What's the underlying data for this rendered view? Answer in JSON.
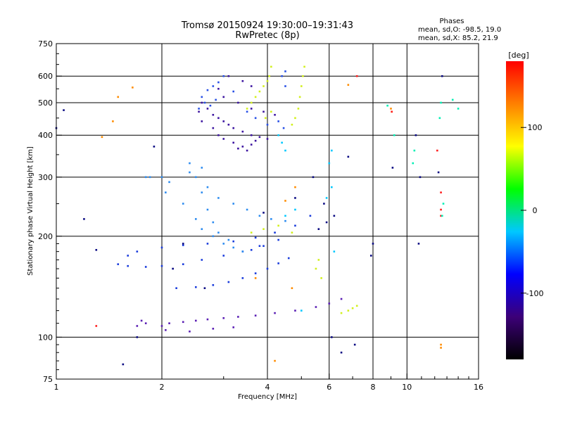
{
  "chart_data": {
    "type": "scatter",
    "title": "Tromsø 20150924 19:30:00–19:31:43",
    "subtitle": "RwPretec (8p)",
    "phases": {
      "heading": "Phases",
      "line_o": "mean, sd,O:  -98.5, 19.0",
      "line_x": "mean, sd,X:   85.2, 21.9"
    },
    "xlabel": "Frequency [MHz]",
    "ylabel": "Stationary phase Virtual Height [km]",
    "x_scale": "log",
    "y_scale": "log",
    "xlim": [
      1,
      16
    ],
    "ylim": [
      75,
      750
    ],
    "x_ticks": [
      1,
      2,
      4,
      6,
      8,
      10,
      16
    ],
    "x_tick_labels": [
      "1",
      "2",
      "4",
      "6",
      "8",
      "10",
      "16"
    ],
    "y_ticks": [
      75,
      100,
      200,
      300,
      400,
      500,
      600,
      750
    ],
    "y_tick_labels": [
      "75",
      "100",
      "200",
      "300",
      "400",
      "500",
      "600",
      "750"
    ],
    "grid": true,
    "grid_x": [
      2,
      4,
      6,
      8,
      10
    ],
    "grid_y": [
      100,
      200,
      300,
      400,
      500,
      600
    ],
    "colorbar": {
      "label": "[deg]",
      "range": [
        -180,
        180
      ],
      "ticks": [
        100,
        0,
        -100
      ],
      "tick_labels": [
        "100",
        "0",
        "-100"
      ],
      "colors": [
        "#000000",
        "#3c0078",
        "#0000ff",
        "#00c8ff",
        "#00ff00",
        "#ffff00",
        "#ff8000",
        "#ff0000"
      ]
    },
    "series": [
      {
        "color": "#5a1eb4",
        "points": [
          [
            2.0,
            108
          ],
          [
            2.1,
            110
          ],
          [
            2.3,
            111
          ],
          [
            2.5,
            112
          ],
          [
            2.7,
            113
          ],
          [
            3.0,
            114
          ],
          [
            3.3,
            115
          ],
          [
            3.7,
            116
          ],
          [
            4.2,
            118
          ],
          [
            4.8,
            120
          ],
          [
            5.5,
            123
          ],
          [
            6.0,
            126
          ],
          [
            6.5,
            130
          ],
          [
            2.05,
            105
          ],
          [
            2.4,
            104
          ],
          [
            2.8,
            106
          ],
          [
            3.2,
            107
          ],
          [
            1.7,
            108
          ],
          [
            1.75,
            112
          ],
          [
            1.8,
            110
          ]
        ]
      },
      {
        "color": "#1a3cdc",
        "points": [
          [
            2.2,
            140
          ],
          [
            2.5,
            141
          ],
          [
            2.8,
            143
          ],
          [
            3.1,
            146
          ],
          [
            3.4,
            150
          ],
          [
            3.7,
            155
          ],
          [
            4.0,
            160
          ],
          [
            4.3,
            166
          ],
          [
            4.6,
            172
          ],
          [
            1.5,
            165
          ],
          [
            1.6,
            163
          ],
          [
            1.8,
            162
          ],
          [
            2.0,
            163
          ],
          [
            2.3,
            165
          ],
          [
            2.6,
            170
          ],
          [
            3.0,
            175
          ],
          [
            3.4,
            180
          ],
          [
            3.8,
            187
          ],
          [
            1.6,
            175
          ],
          [
            1.7,
            180
          ],
          [
            2.0,
            185
          ],
          [
            2.3,
            188
          ],
          [
            2.7,
            190
          ],
          [
            3.2,
            193
          ],
          [
            3.7,
            198
          ],
          [
            4.2,
            205
          ],
          [
            4.8,
            215
          ],
          [
            5.3,
            230
          ],
          [
            3.6,
            182
          ],
          [
            3.9,
            187
          ],
          [
            4.3,
            195
          ]
        ]
      },
      {
        "color": "#2d8cf0",
        "points": [
          [
            2.4,
            330
          ],
          [
            2.5,
            300
          ],
          [
            2.6,
            270
          ],
          [
            2.7,
            240
          ],
          [
            2.8,
            220
          ],
          [
            2.9,
            205
          ],
          [
            3.0,
            190
          ],
          [
            3.2,
            185
          ],
          [
            3.4,
            180
          ],
          [
            2.3,
            250
          ],
          [
            2.5,
            225
          ],
          [
            2.6,
            210
          ],
          [
            2.8,
            200
          ],
          [
            3.1,
            195
          ],
          [
            2.0,
            300
          ],
          [
            2.1,
            290
          ],
          [
            2.05,
            270
          ],
          [
            1.8,
            300
          ],
          [
            1.85,
            300
          ],
          [
            2.6,
            320
          ],
          [
            2.4,
            310
          ],
          [
            2.7,
            280
          ],
          [
            2.9,
            260
          ],
          [
            3.2,
            250
          ],
          [
            3.5,
            240
          ],
          [
            3.8,
            230
          ],
          [
            4.1,
            225
          ],
          [
            4.5,
            222
          ]
        ]
      },
      {
        "color": "#3c14a0",
        "points": [
          [
            2.7,
            480
          ],
          [
            2.8,
            460
          ],
          [
            2.9,
            450
          ],
          [
            3.0,
            440
          ],
          [
            3.1,
            430
          ],
          [
            3.2,
            420
          ],
          [
            3.4,
            410
          ],
          [
            3.6,
            400
          ],
          [
            3.8,
            395
          ],
          [
            4.0,
            390
          ],
          [
            2.8,
            420
          ],
          [
            2.9,
            400
          ],
          [
            3.0,
            390
          ],
          [
            3.2,
            380
          ],
          [
            3.4,
            370
          ],
          [
            3.6,
            375
          ],
          [
            3.7,
            385
          ],
          [
            3.3,
            365
          ],
          [
            3.5,
            360
          ],
          [
            2.6,
            440
          ],
          [
            2.55,
            470
          ],
          [
            2.6,
            500
          ],
          [
            3.0,
            520
          ],
          [
            3.3,
            500
          ],
          [
            3.6,
            480
          ],
          [
            3.9,
            470
          ],
          [
            4.2,
            460
          ],
          [
            2.9,
            550
          ],
          [
            3.1,
            600
          ],
          [
            3.4,
            580
          ],
          [
            3.6,
            560
          ]
        ]
      },
      {
        "color": "#2850e6",
        "points": [
          [
            2.55,
            480
          ],
          [
            2.6,
            520
          ],
          [
            2.7,
            545
          ],
          [
            2.8,
            560
          ],
          [
            2.9,
            575
          ],
          [
            3.0,
            600
          ],
          [
            2.65,
            500
          ],
          [
            2.75,
            490
          ],
          [
            2.85,
            510
          ],
          [
            3.2,
            540
          ],
          [
            3.5,
            470
          ],
          [
            3.7,
            450
          ],
          [
            4.0,
            430
          ],
          [
            4.3,
            440
          ],
          [
            4.45,
            420
          ],
          [
            4.4,
            600
          ],
          [
            4.5,
            560
          ],
          [
            4.5,
            620
          ]
        ]
      },
      {
        "color": "#d2f01e",
        "points": [
          [
            3.5,
            480
          ],
          [
            3.6,
            500
          ],
          [
            3.7,
            520
          ],
          [
            3.8,
            540
          ],
          [
            3.9,
            560
          ],
          [
            4.0,
            580
          ],
          [
            4.05,
            600
          ],
          [
            4.1,
            640
          ],
          [
            3.95,
            450
          ],
          [
            4.1,
            470
          ],
          [
            4.7,
            430
          ],
          [
            4.8,
            450
          ],
          [
            4.9,
            480
          ],
          [
            4.95,
            520
          ],
          [
            5.0,
            560
          ],
          [
            5.05,
            600
          ],
          [
            5.1,
            640
          ],
          [
            5.5,
            160
          ],
          [
            5.6,
            170
          ],
          [
            5.7,
            150
          ],
          [
            6.5,
            118
          ],
          [
            6.8,
            120
          ],
          [
            7.0,
            122
          ],
          [
            7.2,
            124
          ],
          [
            3.6,
            205
          ],
          [
            3.9,
            210
          ],
          [
            4.3,
            215
          ],
          [
            4.7,
            205
          ]
        ]
      },
      {
        "color": "#00c8ff",
        "points": [
          [
            4.3,
            400
          ],
          [
            4.4,
            380
          ],
          [
            4.5,
            360
          ],
          [
            6.1,
            360
          ],
          [
            6.0,
            330
          ],
          [
            6.1,
            280
          ],
          [
            5.9,
            260
          ],
          [
            4.8,
            240
          ],
          [
            4.5,
            230
          ],
          [
            6.2,
            180
          ],
          [
            5.0,
            120
          ]
        ]
      },
      {
        "color": "#ff8c00",
        "points": [
          [
            1.65,
            555
          ],
          [
            1.5,
            520
          ],
          [
            1.45,
            440
          ],
          [
            1.35,
            395
          ],
          [
            4.5,
            255
          ],
          [
            4.8,
            280
          ],
          [
            3.7,
            150
          ],
          [
            4.7,
            140
          ],
          [
            6.8,
            565
          ],
          [
            12.5,
            95
          ],
          [
            12.5,
            93
          ],
          [
            9.0,
            480
          ],
          [
            9.05,
            470
          ],
          [
            4.2,
            85
          ]
        ]
      },
      {
        "color": "#ff1e1e",
        "points": [
          [
            1.3,
            108
          ],
          [
            12.5,
            270
          ],
          [
            12.5,
            240
          ],
          [
            9.05,
            470
          ],
          [
            12.2,
            360
          ],
          [
            12.5,
            230
          ],
          [
            7.2,
            600
          ]
        ]
      },
      {
        "color": "#0a0a82",
        "points": [
          [
            1.0,
            420
          ],
          [
            1.05,
            475
          ],
          [
            1.2,
            225
          ],
          [
            1.3,
            182
          ],
          [
            1.55,
            83
          ],
          [
            1.7,
            100
          ],
          [
            1.9,
            370
          ],
          [
            2.15,
            160
          ],
          [
            2.3,
            190
          ],
          [
            2.65,
            140
          ],
          [
            3.9,
            235
          ],
          [
            4.8,
            260
          ],
          [
            5.4,
            300
          ],
          [
            6.2,
            230
          ],
          [
            6.8,
            345
          ],
          [
            7.1,
            95
          ],
          [
            8.0,
            190
          ],
          [
            6.5,
            90
          ],
          [
            7.9,
            175
          ],
          [
            10.8,
            190
          ],
          [
            10.9,
            300
          ],
          [
            12.3,
            310
          ],
          [
            12.6,
            600
          ],
          [
            10.6,
            400
          ],
          [
            9.1,
            320
          ],
          [
            5.8,
            250
          ],
          [
            5.9,
            220
          ],
          [
            5.6,
            210
          ],
          [
            6.1,
            100
          ]
        ]
      },
      {
        "color": "#00f0b4",
        "points": [
          [
            12.6,
            230
          ],
          [
            12.7,
            250
          ],
          [
            12.5,
            500
          ],
          [
            12.4,
            450
          ],
          [
            14.0,
            480
          ],
          [
            13.5,
            510
          ],
          [
            10.5,
            360
          ],
          [
            10.4,
            330
          ],
          [
            8.8,
            490
          ],
          [
            9.2,
            400
          ]
        ]
      }
    ]
  }
}
